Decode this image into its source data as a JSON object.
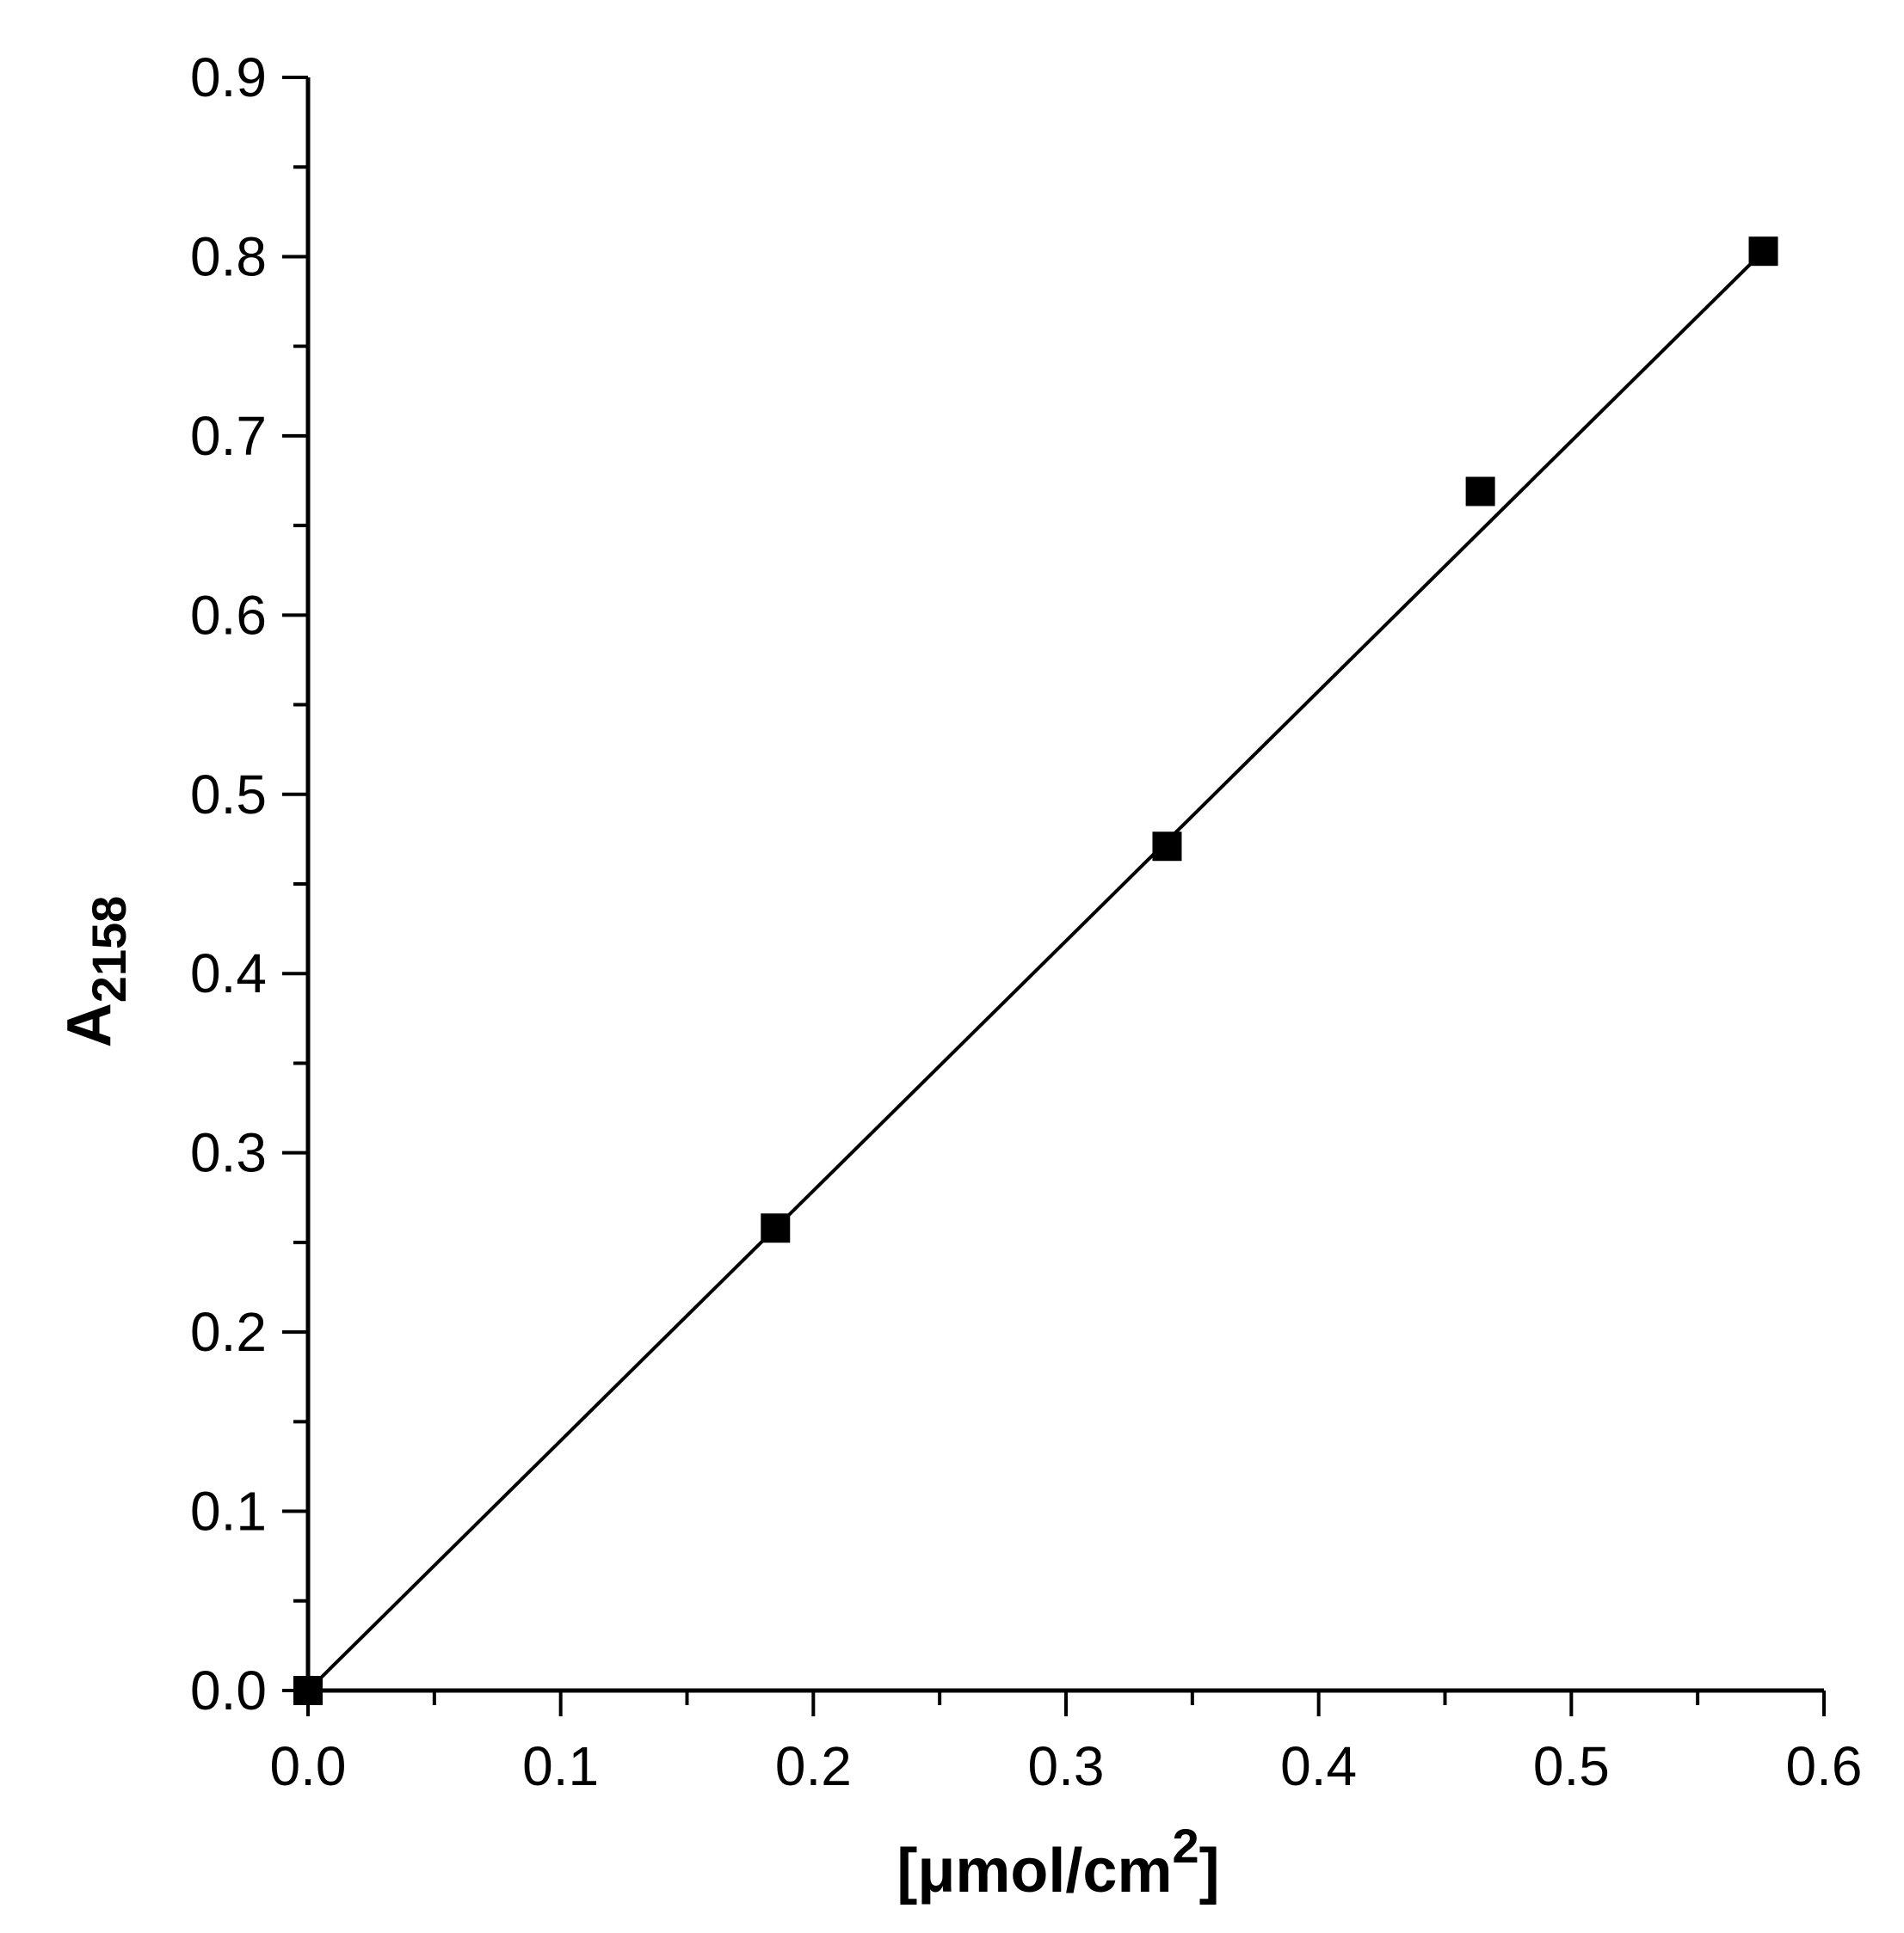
{
  "chart_data": {
    "type": "scatter",
    "xlabel": "[μmol/cm",
    "xlabel_superscript": "2",
    "xlabel_close": "]",
    "ylabel": "A",
    "ylabel_subscript": "2158",
    "xlim": [
      0.0,
      0.6
    ],
    "ylim": [
      0.0,
      0.9
    ],
    "x_ticks": [
      0.0,
      0.1,
      0.2,
      0.3,
      0.4,
      0.5,
      0.6
    ],
    "x_tick_labels": [
      "0.0",
      "0.1",
      "0.2",
      "0.3",
      "0.4",
      "0.5",
      "0.6"
    ],
    "y_ticks": [
      0.0,
      0.1,
      0.2,
      0.3,
      0.4,
      0.5,
      0.6,
      0.7,
      0.8,
      0.9
    ],
    "y_tick_labels": [
      "0.0",
      "0.1",
      "0.2",
      "0.3",
      "0.4",
      "0.5",
      "0.6",
      "0.7",
      "0.8",
      "0.9"
    ],
    "grid": false,
    "series": [
      {
        "marker": "square",
        "color": "#000000",
        "points": [
          {
            "x": 0.0,
            "y": 0.0
          },
          {
            "x": 0.185,
            "y": 0.258
          },
          {
            "x": 0.34,
            "y": 0.471
          },
          {
            "x": 0.464,
            "y": 0.669
          },
          {
            "x": 0.576,
            "y": 0.803
          }
        ]
      }
    ],
    "fit_line": {
      "style": "solid",
      "color": "#000000",
      "x": [
        0.0,
        0.576
      ],
      "y": [
        0.0,
        0.803
      ]
    }
  }
}
